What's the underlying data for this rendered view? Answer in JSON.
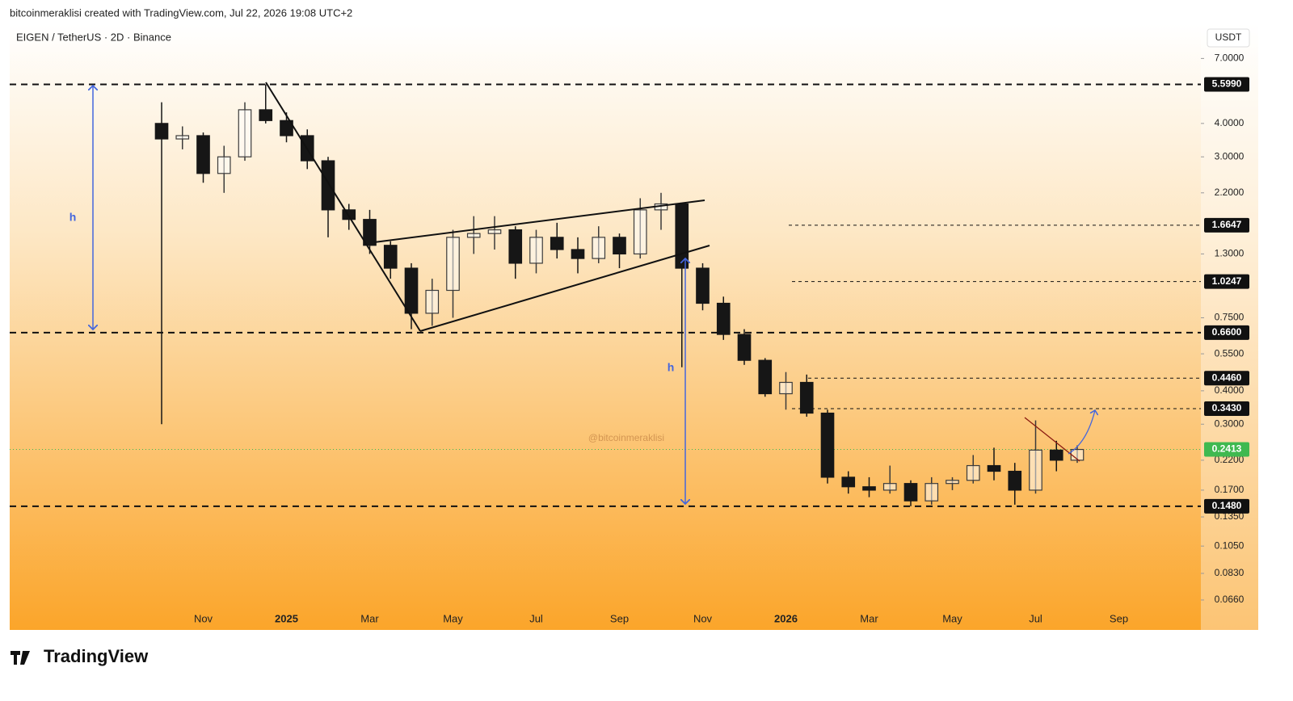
{
  "header": {
    "byline": "bitcoinmeraklisi created with TradingView.com, Jul 22, 2026 19:08 UTC+2",
    "brand": "TradingView"
  },
  "chart_data": {
    "type": "candlestick",
    "title": "EIGEN / TetherUS · 2D · Binance",
    "y_axis_label": "USDT",
    "log_scale": true,
    "ylim": [
      0.051,
      9.4
    ],
    "yticks": [
      {
        "value": 7,
        "label": "7.0000"
      },
      {
        "value": 4,
        "label": "4.0000"
      },
      {
        "value": 3,
        "label": "3.0000"
      },
      {
        "value": 2.2,
        "label": "2.2000"
      },
      {
        "value": 1.3,
        "label": "1.3000"
      },
      {
        "value": 0.75,
        "label": "0.7500"
      },
      {
        "value": 0.55,
        "label": "0.5500"
      },
      {
        "value": 0.4,
        "label": "0.4000"
      },
      {
        "value": 0.3,
        "label": "0.3000"
      },
      {
        "value": 0.22,
        "label": "0.2200"
      },
      {
        "value": 0.17,
        "label": "0.1700"
      },
      {
        "value": 0.135,
        "label": "0.1350"
      },
      {
        "value": 0.105,
        "label": "0.1050"
      },
      {
        "value": 0.083,
        "label": "0.0830"
      },
      {
        "value": 0.066,
        "label": "0.0660"
      }
    ],
    "categories": [
      null,
      null,
      "Nov",
      null,
      null,
      null,
      "2025",
      null,
      null,
      null,
      "Mar",
      null,
      null,
      null,
      "May",
      null,
      null,
      null,
      "Jul",
      null,
      null,
      null,
      "Sep",
      null,
      null,
      null,
      "Nov",
      null,
      null,
      null,
      "2026",
      null,
      null,
      null,
      "Mar",
      null,
      null,
      null,
      "May",
      null,
      null,
      null,
      "Jul",
      null,
      null,
      null,
      "Sep",
      null,
      null,
      null
    ],
    "open": [
      4.0,
      3.5,
      3.6,
      2.6,
      3.0,
      4.5,
      4.1,
      3.6,
      2.9,
      1.9,
      1.75,
      1.4,
      1.15,
      0.78,
      0.95,
      1.5,
      1.55,
      1.6,
      1.2,
      1.5,
      1.35,
      1.25,
      1.5,
      1.3,
      1.9,
      2.0,
      1.15,
      0.85,
      0.65,
      0.52,
      0.39,
      0.43,
      0.33,
      0.19,
      0.175,
      0.17,
      0.18,
      0.155,
      0.18,
      0.185,
      0.21,
      0.2,
      0.17,
      0.24,
      0.22,
      null,
      null,
      null,
      null,
      null
    ],
    "high": [
      4.8,
      3.9,
      3.7,
      3.3,
      4.8,
      5.6,
      4.4,
      3.8,
      3.0,
      2.0,
      1.9,
      1.45,
      1.2,
      1.05,
      1.6,
      1.8,
      1.8,
      1.65,
      1.6,
      1.7,
      1.5,
      1.65,
      1.55,
      2.1,
      2.2,
      2.0,
      1.2,
      0.9,
      0.68,
      0.53,
      0.47,
      0.46,
      0.34,
      0.2,
      0.19,
      0.21,
      0.185,
      0.19,
      0.19,
      0.23,
      0.245,
      0.215,
      0.31,
      0.26,
      0.25,
      null,
      null,
      null,
      null,
      null
    ],
    "low": [
      0.3,
      3.2,
      2.4,
      2.2,
      2.9,
      4.0,
      3.4,
      2.7,
      1.5,
      1.6,
      1.3,
      1.05,
      0.68,
      0.7,
      0.75,
      1.3,
      1.35,
      1.05,
      1.1,
      1.25,
      1.1,
      1.2,
      1.15,
      1.25,
      1.6,
      0.49,
      0.8,
      0.62,
      0.5,
      0.38,
      0.34,
      0.32,
      0.18,
      0.165,
      0.16,
      0.165,
      0.148,
      0.15,
      0.17,
      0.18,
      0.185,
      0.15,
      0.165,
      0.2,
      0.215,
      null,
      null,
      null,
      null,
      null
    ],
    "close": [
      3.5,
      3.6,
      2.6,
      3.0,
      4.5,
      4.1,
      3.6,
      2.9,
      1.9,
      1.75,
      1.4,
      1.15,
      0.78,
      0.95,
      1.5,
      1.55,
      1.6,
      1.2,
      1.5,
      1.35,
      1.25,
      1.5,
      1.3,
      1.9,
      2.0,
      1.15,
      0.85,
      0.65,
      0.52,
      0.39,
      0.43,
      0.33,
      0.19,
      0.175,
      0.17,
      0.18,
      0.155,
      0.18,
      0.185,
      0.21,
      0.2,
      0.17,
      0.24,
      0.22,
      0.2413,
      null,
      null,
      null,
      null,
      null
    ],
    "up_color": "#3b3b3b",
    "down_color": "#161616",
    "price_levels": [
      {
        "value": 5.599,
        "label": "5.5990"
      },
      {
        "value": 1.6647,
        "label": "1.6647"
      },
      {
        "value": 1.0247,
        "label": "1.0247"
      },
      {
        "value": 0.66,
        "label": "0.6600"
      },
      {
        "value": 0.446,
        "label": "0.4460"
      },
      {
        "value": 0.343,
        "label": "0.3430"
      },
      {
        "value": 0.148,
        "label": "0.1480"
      }
    ],
    "last_price": {
      "value": 0.2413,
      "label": "0.2413",
      "color": "#3fb950"
    },
    "annotations": [
      "h",
      "h",
      "@bitcoinmeraklisi"
    ]
  }
}
